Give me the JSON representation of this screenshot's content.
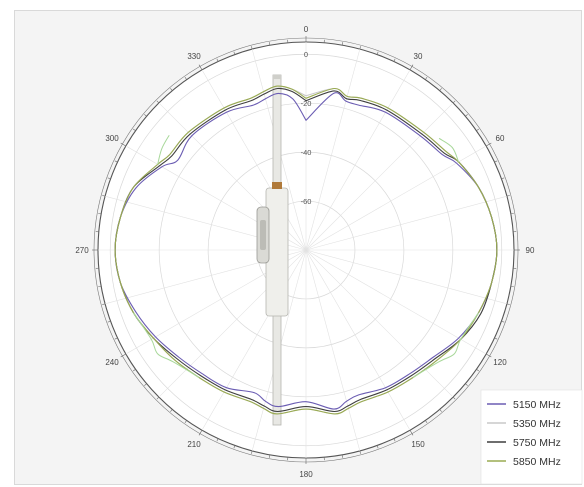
{
  "chart_data": {
    "type": "polar-line",
    "title": "",
    "angle_ticks": [
      {
        "angle": 0,
        "label": "0"
      },
      {
        "angle": 30,
        "label": "30"
      },
      {
        "angle": 60,
        "label": "60"
      },
      {
        "angle": 90,
        "label": "90"
      },
      {
        "angle": 120,
        "label": "120"
      },
      {
        "angle": 150,
        "label": "150"
      },
      {
        "angle": 180,
        "label": "180"
      },
      {
        "angle": 210,
        "label": "210"
      },
      {
        "angle": 240,
        "label": "240"
      },
      {
        "angle": 270,
        "label": "270"
      },
      {
        "angle": 300,
        "label": "300"
      },
      {
        "angle": 330,
        "label": "330"
      }
    ],
    "radial_ticks": [
      {
        "value": 0,
        "label": "0"
      },
      {
        "value": -20,
        "label": "-20"
      },
      {
        "value": -40,
        "label": "-40"
      },
      {
        "value": -60,
        "label": "-60"
      }
    ],
    "rlim": [
      -80,
      5
    ],
    "legend_position": "bottom-right",
    "series": [
      {
        "name": "5150 MHz",
        "color": "#6b5db3",
        "angles": [
          0,
          10,
          15,
          20,
          30,
          45,
          55,
          60,
          70,
          80,
          90,
          100,
          110,
          120,
          130,
          140,
          150,
          160,
          165,
          170,
          180,
          190,
          195,
          200,
          210,
          220,
          230,
          240,
          250,
          260,
          270,
          280,
          290,
          300,
          305,
          315,
          330,
          340,
          345,
          350,
          355,
          360
        ],
        "values": [
          -27,
          -15,
          -17,
          -17,
          -15,
          -14,
          -12,
          -9,
          -5,
          -3,
          -2,
          -3,
          -5,
          -8,
          -12,
          -14,
          -15,
          -17,
          -16,
          -14,
          -18,
          -15,
          -16,
          -18,
          -15,
          -14,
          -12,
          -9,
          -6,
          -3,
          -2,
          -3,
          -6,
          -12,
          -16,
          -14,
          -15,
          -17,
          -16,
          -15,
          -18,
          -27
        ]
      },
      {
        "name": "5350 MHz",
        "color": "#c9c9c9",
        "angles": [
          0,
          10,
          15,
          20,
          30,
          45,
          55,
          60,
          70,
          80,
          90,
          100,
          110,
          120,
          130,
          140,
          150,
          160,
          165,
          170,
          180,
          190,
          195,
          200,
          210,
          220,
          230,
          240,
          250,
          260,
          270,
          280,
          290,
          300,
          305,
          315,
          330,
          340,
          345,
          350,
          355,
          360
        ],
        "values": [
          -17,
          -13,
          -15,
          -14,
          -13,
          -12,
          -10,
          -8,
          -5,
          -3,
          -2,
          -3,
          -4,
          -7,
          -10,
          -12,
          -13,
          -14,
          -13,
          -12,
          -15,
          -12,
          -13,
          -14,
          -13,
          -12,
          -10,
          -8,
          -5,
          -3,
          -2,
          -3,
          -5,
          -10,
          -12,
          -12,
          -13,
          -14,
          -13,
          -12,
          -14,
          -17
        ]
      },
      {
        "name": "5750 MHz",
        "color": "#3f3f3f",
        "angles": [
          0,
          10,
          15,
          20,
          30,
          45,
          55,
          60,
          70,
          80,
          90,
          100,
          110,
          120,
          130,
          140,
          150,
          160,
          165,
          170,
          180,
          190,
          195,
          200,
          210,
          220,
          230,
          240,
          250,
          260,
          270,
          280,
          290,
          300,
          305,
          315,
          330,
          340,
          345,
          350,
          355,
          360
        ],
        "values": [
          -19,
          -14,
          -16,
          -15,
          -14,
          -13,
          -11,
          -8,
          -5,
          -3,
          -2,
          -3,
          -4,
          -7,
          -11,
          -13,
          -14,
          -15,
          -14,
          -13,
          -16,
          -13,
          -14,
          -15,
          -14,
          -13,
          -11,
          -8,
          -5,
          -3,
          -2,
          -3,
          -5,
          -11,
          -13,
          -13,
          -14,
          -15,
          -14,
          -13,
          -15,
          -19
        ]
      },
      {
        "name": "5850 MHz",
        "color": "#9aab52",
        "angles": [
          0,
          10,
          15,
          20,
          30,
          45,
          55,
          60,
          70,
          80,
          90,
          100,
          110,
          120,
          130,
          140,
          150,
          160,
          165,
          170,
          180,
          190,
          195,
          200,
          210,
          220,
          230,
          240,
          250,
          260,
          270,
          280,
          290,
          300,
          305,
          315,
          330,
          340,
          345,
          350,
          355,
          360
        ],
        "values": [
          -18,
          -13,
          -15,
          -14,
          -13,
          -12,
          -10,
          -8,
          -5,
          -3,
          -2,
          -3,
          -5,
          -7,
          -10,
          -12,
          -13,
          -14,
          -13,
          -12,
          -15,
          -12,
          -13,
          -14,
          -13,
          -12,
          -10,
          -8,
          -5,
          -3,
          -2,
          -3,
          -5,
          -10,
          -12,
          -12,
          -13,
          -14,
          -13,
          -12,
          -14,
          -18
        ]
      }
    ],
    "highlight_series": {
      "name": "",
      "color": "#a8d89a",
      "angles": [
        110,
        120,
        125,
        130,
        140,
        220,
        230,
        235,
        240,
        250,
        300,
        305,
        310,
        60,
        55,
        50
      ],
      "values": [
        -5,
        -7,
        -6,
        -9,
        -12,
        -12,
        -9,
        -6,
        -7,
        -5,
        -10,
        -8,
        -7,
        -8,
        -7,
        -9
      ]
    }
  }
}
